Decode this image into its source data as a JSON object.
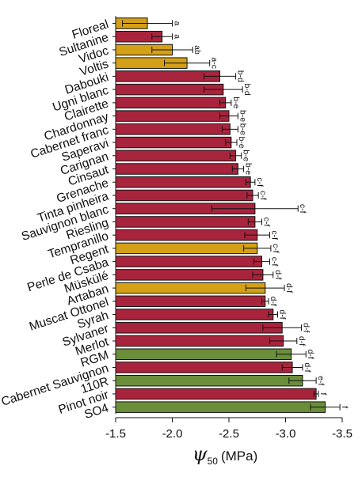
{
  "chart_data": {
    "type": "bar",
    "orientation": "horizontal",
    "xlabel": {
      "symbol": "ψ",
      "subscript": "50",
      "unit": "(MPa)"
    },
    "xlim": [
      -1.5,
      -3.5
    ],
    "xticks": [
      -1.5,
      -2.0,
      -2.5,
      -3.0,
      -3.5
    ],
    "xtick_labels": [
      "-1.5",
      "-2.0",
      "-2.5",
      "-3.0",
      "-3.5"
    ],
    "grid": false,
    "legend": "none",
    "colors": {
      "gold": "#D4A017",
      "red": "#A8243C",
      "green": "#6B8E3A"
    },
    "bars": [
      {
        "category": "Floreal",
        "value": -1.78,
        "error": 0.22,
        "color": "gold",
        "letters": "a"
      },
      {
        "category": "Sultanine",
        "value": -1.91,
        "error": 0.09,
        "color": "red",
        "letters": "a"
      },
      {
        "category": "Vidoc",
        "value": -2.0,
        "error": 0.18,
        "color": "gold",
        "letters": "ab"
      },
      {
        "category": "Voltis",
        "value": -2.13,
        "error": 0.2,
        "color": "gold",
        "letters": "a-c"
      },
      {
        "category": "Dabouki",
        "value": -2.42,
        "error": 0.14,
        "color": "red",
        "letters": "b-d"
      },
      {
        "category": "Ugni blanc",
        "value": -2.45,
        "error": 0.17,
        "color": "red",
        "letters": "b-d"
      },
      {
        "category": "Clairette",
        "value": -2.47,
        "error": 0.05,
        "color": "red",
        "letters": "b-e"
      },
      {
        "category": "Chardonnay",
        "value": -2.5,
        "error": 0.08,
        "color": "red",
        "letters": "b-e"
      },
      {
        "category": "Cabernet franc",
        "value": -2.51,
        "error": 0.07,
        "color": "red",
        "letters": "b-e"
      },
      {
        "category": "Saperavi",
        "value": -2.52,
        "error": 0.05,
        "color": "red",
        "letters": "b-e"
      },
      {
        "category": "Carignan",
        "value": -2.56,
        "error": 0.05,
        "color": "red",
        "letters": "b-e"
      },
      {
        "category": "Cinsaut",
        "value": -2.58,
        "error": 0.05,
        "color": "red",
        "letters": "b-e"
      },
      {
        "category": "Grenache",
        "value": -2.69,
        "error": 0.04,
        "color": "red",
        "letters": "c-f"
      },
      {
        "category": "Tinta pinheira",
        "value": -2.71,
        "error": 0.05,
        "color": "red",
        "letters": "c-f"
      },
      {
        "category": "Sauvignon blanc",
        "value": -2.73,
        "error": 0.38,
        "color": "red",
        "letters": "c-f"
      },
      {
        "category": "Riesling",
        "value": -2.73,
        "error": 0.06,
        "color": "red",
        "letters": "c-f"
      },
      {
        "category": "Tempranillo",
        "value": -2.75,
        "error": 0.11,
        "color": "red",
        "letters": "c-f"
      },
      {
        "category": "Regent",
        "value": -2.75,
        "error": 0.12,
        "color": "gold",
        "letters": "c-f"
      },
      {
        "category": "Perle de Csaba",
        "value": -2.79,
        "error": 0.07,
        "color": "red",
        "letters": "c-f"
      },
      {
        "category": "Müskülé",
        "value": -2.8,
        "error": 0.09,
        "color": "red",
        "letters": "d-f"
      },
      {
        "category": "Artaban",
        "value": -2.82,
        "error": 0.17,
        "color": "gold",
        "letters": "d-f"
      },
      {
        "category": "Muscat Ottonel",
        "value": -2.82,
        "error": 0.03,
        "color": "red",
        "letters": "d-f"
      },
      {
        "category": "Syrah",
        "value": -2.89,
        "error": 0.04,
        "color": "red",
        "letters": "d-f"
      },
      {
        "category": "Sylvaner",
        "value": -2.97,
        "error": 0.17,
        "color": "red",
        "letters": "d-f"
      },
      {
        "category": "Merlot",
        "value": -2.98,
        "error": 0.12,
        "color": "red",
        "letters": "d-f"
      },
      {
        "category": "RGM",
        "value": -3.05,
        "error": 0.13,
        "color": "green",
        "letters": "d-f"
      },
      {
        "category": "Cabernet Sauvignon",
        "value": -3.06,
        "error": 0.09,
        "color": "red",
        "letters": "d-f"
      },
      {
        "category": "110R",
        "value": -3.15,
        "error": 0.12,
        "color": "green",
        "letters": "e-f"
      },
      {
        "category": "Pinot noir",
        "value": -3.27,
        "error": 0.02,
        "color": "red",
        "letters": "f"
      },
      {
        "category": "SO4",
        "value": -3.35,
        "error": 0.13,
        "color": "green",
        "letters": "f"
      }
    ]
  }
}
